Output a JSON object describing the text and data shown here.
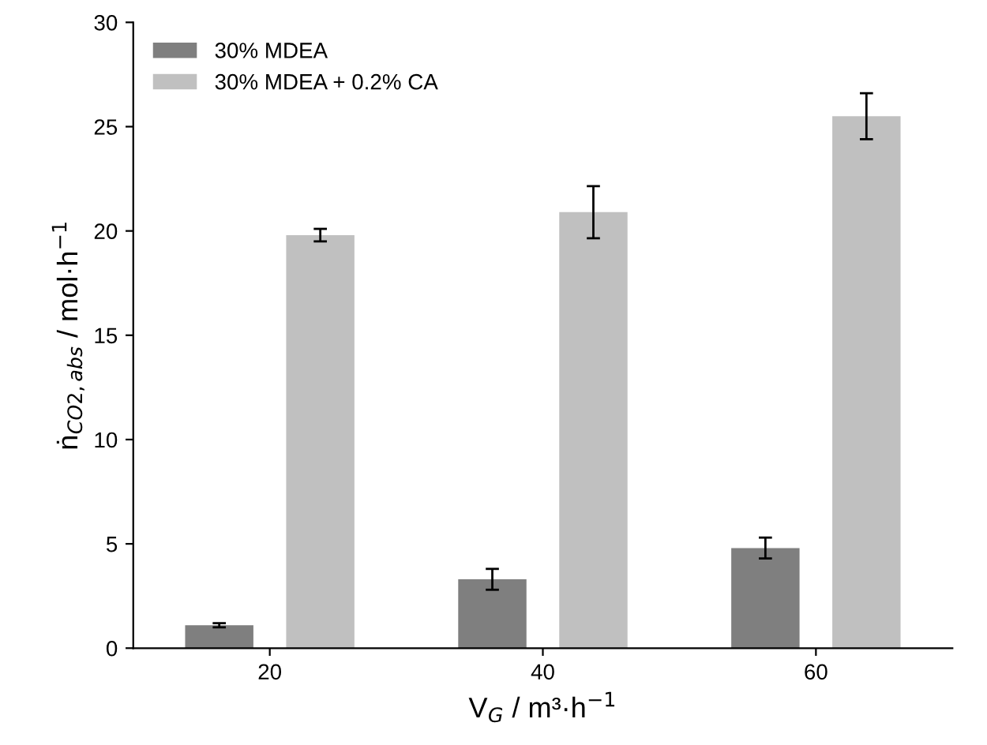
{
  "chart_data": {
    "type": "bar",
    "categories": [
      "20",
      "40",
      "60"
    ],
    "series": [
      {
        "name": "30% MDEA",
        "color": "#7f7f7f",
        "values": [
          1.1,
          3.3,
          4.8
        ],
        "errors": [
          0.1,
          0.5,
          0.5
        ]
      },
      {
        "name": "30% MDEA + 0.2% CA",
        "color": "#c0c0c0",
        "values": [
          19.8,
          20.9,
          25.5
        ],
        "errors": [
          0.3,
          1.25,
          1.1
        ]
      }
    ],
    "xlabel": "V$_{G}$ / m³·h$^{−1}$",
    "ylabel": "ṅ$_{CO2,abs}$ / mol·h$^{−1}$",
    "ylim": [
      0,
      30
    ],
    "yticks": [
      0,
      5,
      10,
      15,
      20,
      25,
      30
    ],
    "grid": false,
    "legend": "top left"
  }
}
